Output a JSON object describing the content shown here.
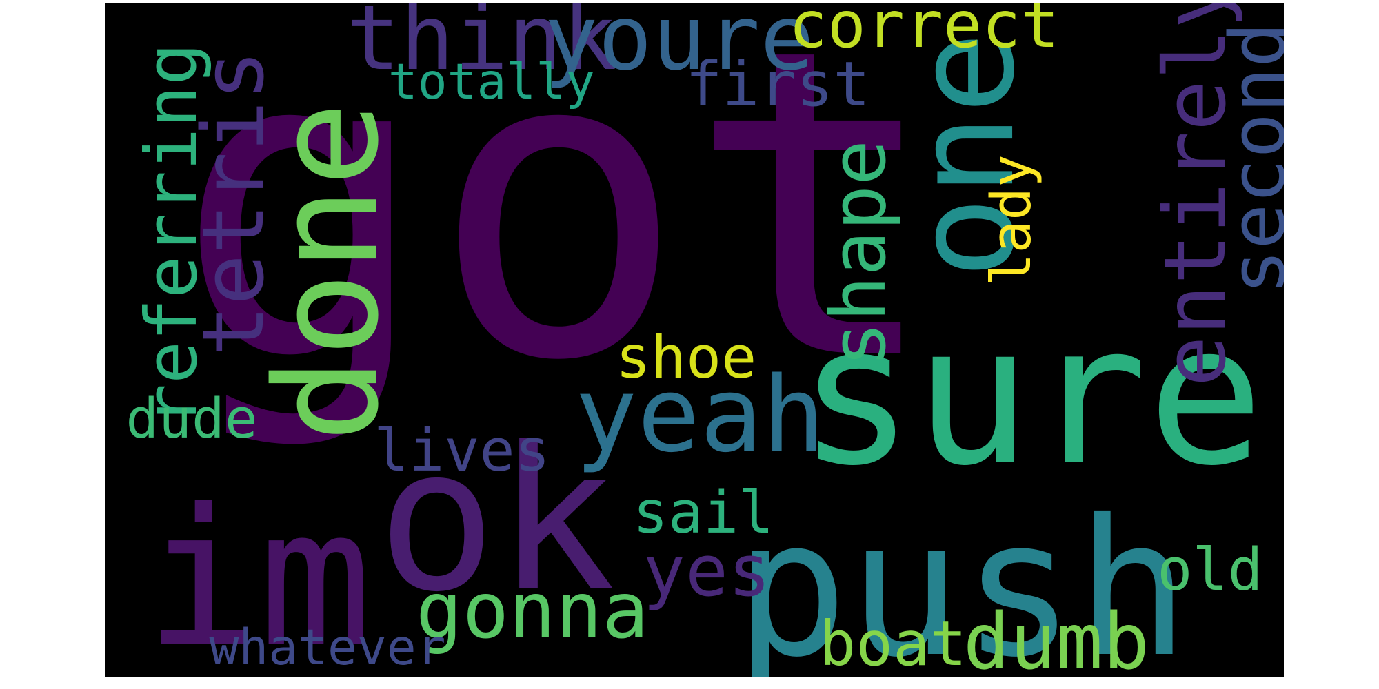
{
  "words": [
    {
      "text": "got",
      "color": "#440154",
      "weight": 1.0
    },
    {
      "text": "sure",
      "color": "#2ab07f",
      "weight": 0.6
    },
    {
      "text": "ok",
      "color": "#481d6f",
      "weight": 0.58
    },
    {
      "text": "im",
      "color": "#471365",
      "weight": 0.58
    },
    {
      "text": "push",
      "color": "#26828e",
      "weight": 0.55
    },
    {
      "text": "done",
      "color": "#6ccd5a",
      "weight": 0.45
    },
    {
      "text": "one",
      "color": "#218f8d",
      "weight": 0.45
    },
    {
      "text": "yeah",
      "color": "#2c718e",
      "weight": 0.3
    },
    {
      "text": "think",
      "color": "#46337f",
      "weight": 0.25
    },
    {
      "text": "youre",
      "color": "#33638d",
      "weight": 0.25
    },
    {
      "text": "tetris",
      "color": "#46307e",
      "weight": 0.24
    },
    {
      "text": "entirely",
      "color": "#472d7b",
      "weight": 0.24
    },
    {
      "text": "second",
      "color": "#3b528b",
      "weight": 0.22
    },
    {
      "text": "gonna",
      "color": "#58c765",
      "weight": 0.21
    },
    {
      "text": "dumb",
      "color": "#7ad151",
      "weight": 0.21
    },
    {
      "text": "shape",
      "color": "#35b779",
      "weight": 0.2
    },
    {
      "text": "referring",
      "color": "#2db27d",
      "weight": 0.2
    },
    {
      "text": "yes",
      "color": "#482878",
      "weight": 0.2
    },
    {
      "text": "correct",
      "color": "#c2df23",
      "weight": 0.19
    },
    {
      "text": "first",
      "color": "#3e4a89",
      "weight": 0.17
    },
    {
      "text": "boat",
      "color": "#86d549",
      "weight": 0.17
    },
    {
      "text": "lives",
      "color": "#414487",
      "weight": 0.16
    },
    {
      "text": "shoe",
      "color": "#d8e219",
      "weight": 0.16
    },
    {
      "text": "sail",
      "color": "#2db27d",
      "weight": 0.16
    },
    {
      "text": "old",
      "color": "#4ac16d",
      "weight": 0.16
    },
    {
      "text": "lady",
      "color": "#fde725",
      "weight": 0.15
    },
    {
      "text": "dude",
      "color": "#3bbb75",
      "weight": 0.15
    },
    {
      "text": "whatever",
      "color": "#3e4989",
      "weight": 0.13
    },
    {
      "text": "totally",
      "color": "#21a685",
      "weight": 0.13
    }
  ]
}
